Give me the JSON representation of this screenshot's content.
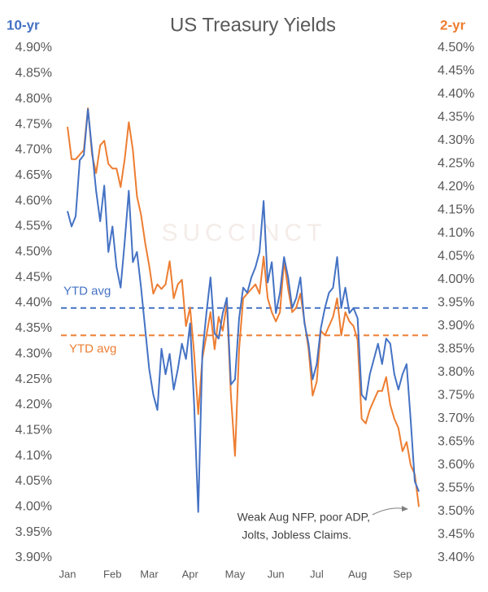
{
  "chart_data": {
    "type": "line",
    "title": "US Treasury Yields",
    "y_label": "10-yr",
    "y2_label": "2-yr",
    "watermark": "SUCCINCT",
    "categories": [
      "Jan",
      null,
      null,
      null,
      null,
      null,
      null,
      null,
      null,
      null,
      null,
      "Feb",
      null,
      null,
      null,
      null,
      null,
      null,
      null,
      null,
      "Mar",
      null,
      null,
      null,
      null,
      null,
      null,
      null,
      null,
      null,
      "Apr",
      null,
      null,
      null,
      null,
      null,
      null,
      null,
      null,
      null,
      null,
      "May",
      null,
      null,
      null,
      null,
      null,
      null,
      null,
      null,
      null,
      "Jun",
      null,
      null,
      null,
      null,
      null,
      null,
      null,
      null,
      null,
      "Jul",
      null,
      null,
      null,
      null,
      null,
      null,
      null,
      null,
      null,
      "Aug",
      null,
      null,
      null,
      null,
      null,
      null,
      null,
      null,
      null,
      null,
      "Sep",
      null,
      null,
      null,
      null
    ],
    "series": [
      {
        "name": "10-yr",
        "color": "#4472c4",
        "axis": "y",
        "values": [
          4.58,
          4.55,
          4.57,
          4.68,
          4.69,
          4.78,
          4.7,
          4.62,
          4.56,
          4.63,
          4.5,
          4.55,
          4.47,
          4.43,
          4.52,
          4.62,
          4.48,
          4.5,
          4.43,
          4.35,
          4.27,
          4.22,
          4.19,
          4.31,
          4.26,
          4.3,
          4.23,
          4.27,
          4.32,
          4.29,
          4.36,
          4.2,
          3.99,
          4.3,
          4.38,
          4.45,
          4.34,
          4.33,
          4.38,
          4.41,
          4.24,
          4.25,
          4.37,
          4.43,
          4.42,
          4.45,
          4.47,
          4.5,
          4.6,
          4.44,
          4.48,
          4.38,
          4.42,
          4.49,
          4.45,
          4.39,
          4.41,
          4.45,
          4.36,
          4.32,
          4.25,
          4.28,
          4.35,
          4.39,
          4.42,
          4.43,
          4.49,
          4.39,
          4.43,
          4.38,
          4.39,
          4.37,
          4.22,
          4.21,
          4.26,
          4.29,
          4.32,
          4.28,
          4.33,
          4.32,
          4.26,
          4.23,
          4.26,
          4.28,
          4.17,
          4.05,
          4.03
        ]
      },
      {
        "name": "2-yr",
        "color": "#ed7d31",
        "axis": "y2",
        "values": [
          4.33,
          4.26,
          4.26,
          4.27,
          4.28,
          4.37,
          4.27,
          4.23,
          4.29,
          4.3,
          4.25,
          4.24,
          4.24,
          4.2,
          4.26,
          4.34,
          4.28,
          4.18,
          4.14,
          4.08,
          4.03,
          3.97,
          3.99,
          3.98,
          3.99,
          4.04,
          3.96,
          3.99,
          4.0,
          3.9,
          3.94,
          3.84,
          3.71,
          3.83,
          3.88,
          3.93,
          3.85,
          3.92,
          3.89,
          3.95,
          3.75,
          3.62,
          3.85,
          3.96,
          3.97,
          3.98,
          3.99,
          3.97,
          4.05,
          3.96,
          3.93,
          3.91,
          3.93,
          4.04,
          3.98,
          3.93,
          3.94,
          3.97,
          3.91,
          3.85,
          3.75,
          3.78,
          3.89,
          3.88,
          3.9,
          3.92,
          3.96,
          3.88,
          3.93,
          3.91,
          3.9,
          3.87,
          3.7,
          3.69,
          3.72,
          3.74,
          3.76,
          3.76,
          3.79,
          3.73,
          3.7,
          3.68,
          3.63,
          3.65,
          3.6,
          3.58,
          3.51
        ]
      }
    ],
    "reference_lines": [
      {
        "label": "YTD avg",
        "value": 4.39,
        "axis": "y",
        "color": "#4472c4"
      },
      {
        "label": "YTD avg",
        "value": 3.88,
        "axis": "y2",
        "color": "#ed7d31"
      }
    ],
    "annotation": [
      "Weak Aug NFP, poor ADP,",
      "Jolts, Jobless Claims."
    ],
    "ylim": [
      3.9,
      4.9
    ],
    "yticks": [
      {
        "value": 3.9,
        "label": "3.90%"
      },
      {
        "value": 3.95,
        "label": "3.95%"
      },
      {
        "value": 4.0,
        "label": "4.00%"
      },
      {
        "value": 4.05,
        "label": "4.05%"
      },
      {
        "value": 4.1,
        "label": "4.10%"
      },
      {
        "value": 4.15,
        "label": "4.15%"
      },
      {
        "value": 4.2,
        "label": "4.20%"
      },
      {
        "value": 4.25,
        "label": "4.25%"
      },
      {
        "value": 4.3,
        "label": "4.30%"
      },
      {
        "value": 4.35,
        "label": "4.35%"
      },
      {
        "value": 4.4,
        "label": "4.40%"
      },
      {
        "value": 4.45,
        "label": "4.45%"
      },
      {
        "value": 4.5,
        "label": "4.50%"
      },
      {
        "value": 4.55,
        "label": "4.55%"
      },
      {
        "value": 4.6,
        "label": "4.60%"
      },
      {
        "value": 4.65,
        "label": "4.65%"
      },
      {
        "value": 4.7,
        "label": "4.70%"
      },
      {
        "value": 4.75,
        "label": "4.75%"
      },
      {
        "value": 4.8,
        "label": "4.80%"
      },
      {
        "value": 4.85,
        "label": "4.85%"
      },
      {
        "value": 4.9,
        "label": "4.90%"
      }
    ],
    "y2lim": [
      3.4,
      4.5
    ],
    "y2ticks": [
      {
        "value": 3.4,
        "label": "3.40%"
      },
      {
        "value": 3.45,
        "label": "3.45%"
      },
      {
        "value": 3.5,
        "label": "3.50%"
      },
      {
        "value": 3.55,
        "label": "3.55%"
      },
      {
        "value": 3.6,
        "label": "3.60%"
      },
      {
        "value": 3.65,
        "label": "3.65%"
      },
      {
        "value": 3.7,
        "label": "3.70%"
      },
      {
        "value": 3.75,
        "label": "3.75%"
      },
      {
        "value": 3.8,
        "label": "3.80%"
      },
      {
        "value": 3.85,
        "label": "3.85%"
      },
      {
        "value": 3.9,
        "label": "3.90%"
      },
      {
        "value": 3.95,
        "label": "3.95%"
      },
      {
        "value": 4.0,
        "label": "4.00%"
      },
      {
        "value": 4.05,
        "label": "4.05%"
      },
      {
        "value": 4.1,
        "label": "4.10%"
      },
      {
        "value": 4.15,
        "label": "4.15%"
      },
      {
        "value": 4.2,
        "label": "4.20%"
      },
      {
        "value": 4.25,
        "label": "4.25%"
      },
      {
        "value": 4.3,
        "label": "4.30%"
      },
      {
        "value": 4.35,
        "label": "4.35%"
      },
      {
        "value": 4.4,
        "label": "4.40%"
      },
      {
        "value": 4.45,
        "label": "4.45%"
      },
      {
        "value": 4.5,
        "label": "4.50%"
      }
    ],
    "grid": false
  }
}
